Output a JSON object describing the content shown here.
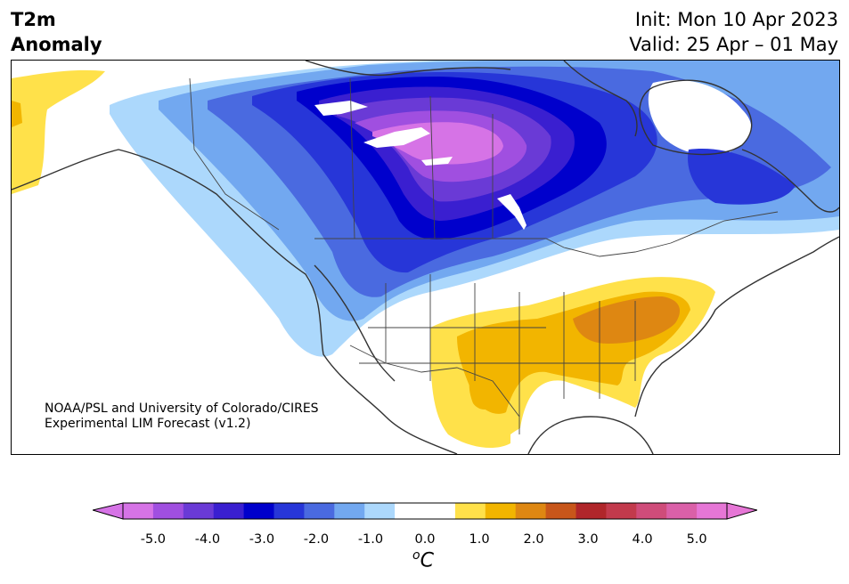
{
  "header": {
    "title_line1": "T2m",
    "title_line2": "Anomaly",
    "init": "Init: Mon 10 Apr 2023",
    "valid": "Valid: 25 Apr – 01 May"
  },
  "credit": {
    "line1": "NOAA/PSL and University of Colorado/CIRES",
    "line2": "Experimental LIM Forecast (v1.2)"
  },
  "colorbar": {
    "unit_base": "C",
    "unit_sup": "o",
    "ticks": [
      "-5.0",
      "-4.0",
      "-3.0",
      "-2.0",
      "-1.0",
      "0.0",
      "1.0",
      "2.0",
      "3.0",
      "4.0",
      "5.0"
    ],
    "colors": [
      "#d673e6",
      "#a04fe0",
      "#6a3ad6",
      "#3a1fd0",
      "#0000cc",
      "#2736d8",
      "#4a6ae0",
      "#72a8f0",
      "#acd8fc",
      "#ffffff",
      "#ffffff",
      "#ffe14a",
      "#f2b500",
      "#de8712",
      "#c8561a",
      "#b0262a",
      "#c23a4c",
      "#cf4c7a",
      "#da60a8",
      "#e676d6"
    ],
    "under_color": "#d673e6",
    "over_color": "#e676d6"
  },
  "map": {
    "colors": {
      "cold5": "#d673e6",
      "cold4": "#a04fe0",
      "cold35": "#6a3ad6",
      "cold3": "#3a1fd0",
      "cold25": "#0000cc",
      "cold2": "#2736d8",
      "cold15": "#4a6ae0",
      "cold1": "#72a8f0",
      "cold05": "#acd8fc",
      "warm1": "#ffe14a",
      "warm2": "#f2b500",
      "warm3": "#de8712"
    }
  }
}
